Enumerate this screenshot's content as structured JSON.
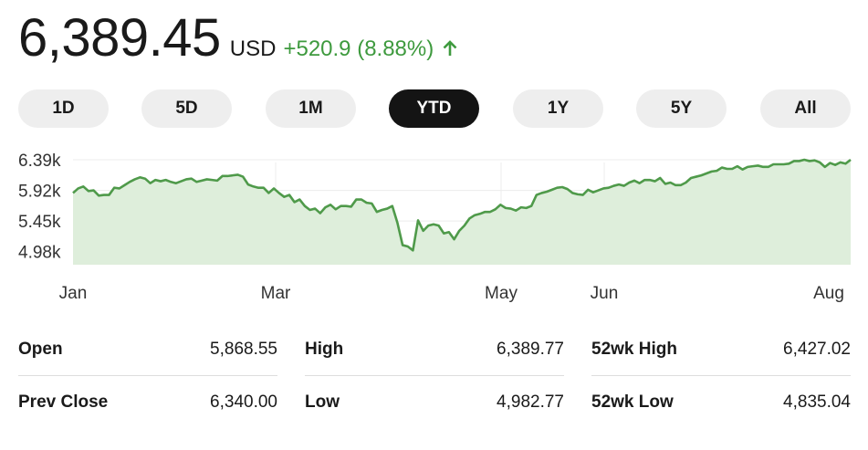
{
  "quote": {
    "price": "6,389.45",
    "currency": "USD",
    "change": "+520.9 (8.88%)",
    "trend_icon": "arrow-up-icon",
    "accent_color": "#3e9a3e"
  },
  "ranges": {
    "items": [
      "1D",
      "5D",
      "1M",
      "YTD",
      "1Y",
      "5Y",
      "All"
    ],
    "selected": "YTD"
  },
  "chart_data": {
    "type": "area",
    "y_ticks": [
      {
        "label": "6.39k",
        "value": 6390
      },
      {
        "label": "5.92k",
        "value": 5920
      },
      {
        "label": "5.45k",
        "value": 5450
      },
      {
        "label": "4.98k",
        "value": 4980
      }
    ],
    "x_ticks": [
      "Jan",
      "Mar",
      "May",
      "Jun",
      "Aug"
    ],
    "ylim": [
      4780,
      6600
    ],
    "grid": true,
    "line_color": "#4f9a4a",
    "fill_color": "#deeedb",
    "values": [
      5880,
      5950,
      5980,
      5910,
      5920,
      5840,
      5850,
      5850,
      5960,
      5950,
      6000,
      6050,
      6090,
      6120,
      6100,
      6030,
      6080,
      6060,
      6080,
      6050,
      6030,
      6060,
      6090,
      6100,
      6050,
      6070,
      6090,
      6080,
      6070,
      6140,
      6140,
      6150,
      6160,
      6130,
      6010,
      5980,
      5960,
      5960,
      5880,
      5950,
      5880,
      5820,
      5850,
      5740,
      5780,
      5680,
      5620,
      5640,
      5570,
      5660,
      5700,
      5630,
      5680,
      5680,
      5670,
      5780,
      5780,
      5730,
      5720,
      5590,
      5620,
      5640,
      5680,
      5420,
      5080,
      5060,
      5000,
      5460,
      5300,
      5380,
      5400,
      5380,
      5260,
      5280,
      5170,
      5300,
      5380,
      5490,
      5540,
      5560,
      5590,
      5590,
      5630,
      5700,
      5650,
      5640,
      5610,
      5660,
      5650,
      5680,
      5850,
      5880,
      5900,
      5930,
      5960,
      5970,
      5940,
      5880,
      5860,
      5850,
      5930,
      5890,
      5920,
      5950,
      5960,
      5990,
      6010,
      5990,
      6040,
      6070,
      6030,
      6080,
      6080,
      6060,
      6110,
      6020,
      6040,
      6000,
      6000,
      6040,
      6110,
      6130,
      6150,
      6180,
      6210,
      6220,
      6270,
      6250,
      6250,
      6290,
      6240,
      6280,
      6290,
      6300,
      6280,
      6280,
      6320,
      6320,
      6320,
      6330,
      6370,
      6370,
      6390,
      6370,
      6380,
      6350,
      6280,
      6340,
      6310,
      6350,
      6330,
      6390
    ]
  },
  "stats": {
    "rows": [
      [
        {
          "label": "Open",
          "value": "5,868.55"
        },
        {
          "label": "High",
          "value": "6,389.77"
        },
        {
          "label": "52wk High",
          "value": "6,427.02"
        }
      ],
      [
        {
          "label": "Prev Close",
          "value": "6,340.00"
        },
        {
          "label": "Low",
          "value": "4,982.77"
        },
        {
          "label": "52wk Low",
          "value": "4,835.04"
        }
      ]
    ]
  }
}
